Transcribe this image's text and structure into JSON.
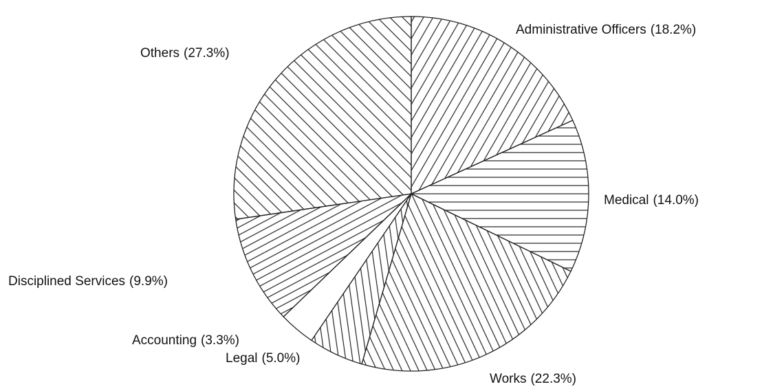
{
  "chart_data": {
    "type": "pie",
    "categories": [
      "Administrative Officers",
      "Medical",
      "Works",
      "Legal",
      "Accounting",
      "Disciplined Services",
      "Others"
    ],
    "values": [
      18.2,
      14.0,
      22.3,
      5.0,
      3.3,
      9.9,
      27.3
    ],
    "value_labels": [
      "(18.2%)",
      "(14.0%)",
      "(22.3%)",
      "(5.0%)",
      "(3.3%)",
      "(9.9%)",
      "(27.3%)"
    ]
  }
}
